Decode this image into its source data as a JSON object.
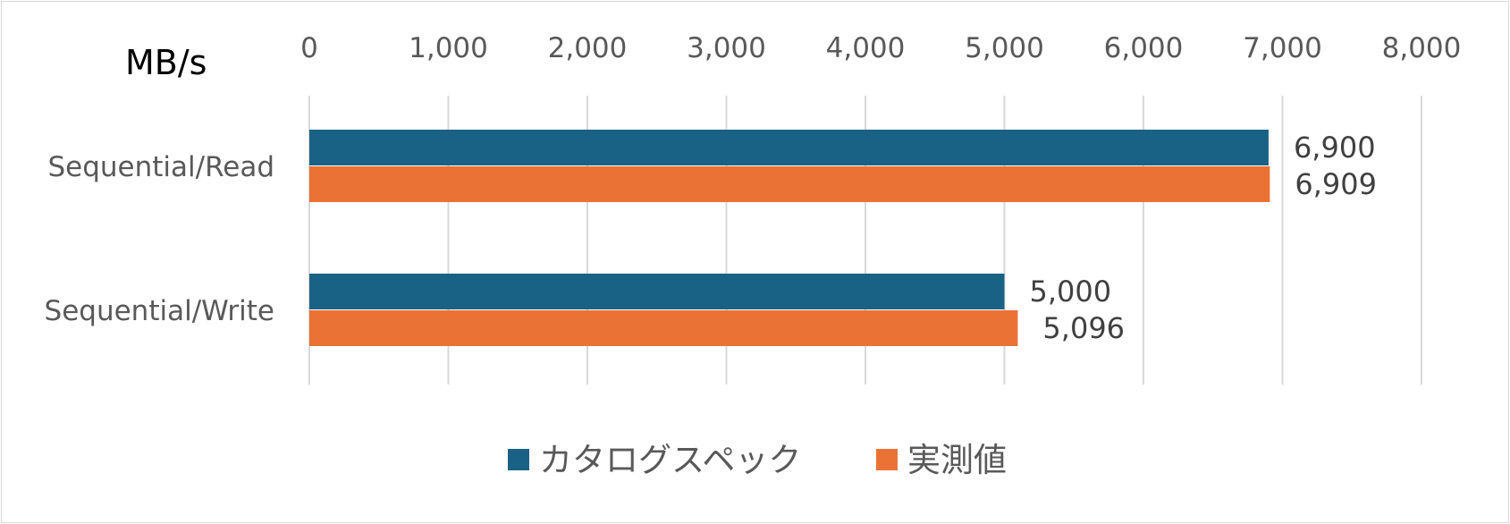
{
  "chart_data": {
    "type": "bar",
    "orientation": "horizontal",
    "unit_label": "MB/s",
    "categories": [
      "Sequential/Read",
      "Sequential/Write"
    ],
    "series": [
      {
        "name": "カタログスペック",
        "color": "#1a6285",
        "values": [
          6900,
          5000
        ],
        "labels": [
          "6,900",
          "5,000"
        ]
      },
      {
        "name": "実測値",
        "color": "#eb7235",
        "values": [
          6909,
          5096
        ],
        "labels": [
          "6,909",
          "5,096"
        ]
      }
    ],
    "xlim": [
      0,
      8000
    ],
    "ticks": [
      0,
      1000,
      2000,
      3000,
      4000,
      5000,
      6000,
      7000,
      8000
    ],
    "tick_labels": [
      "0",
      "1,000",
      "2,000",
      "3,000",
      "4,000",
      "5,000",
      "6,000",
      "7,000",
      "8,000"
    ],
    "grid": true,
    "legend_position": "bottom",
    "axis_position": "top"
  }
}
